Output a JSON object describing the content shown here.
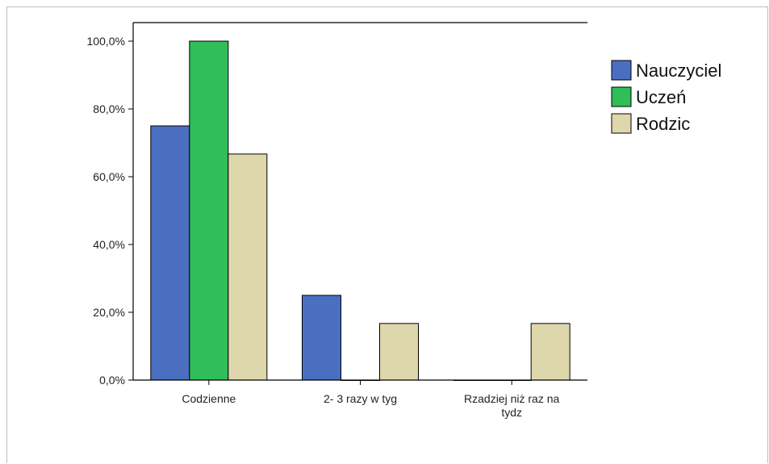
{
  "chart_data": {
    "type": "bar",
    "categories": [
      [
        "Codzienne"
      ],
      [
        "2- 3 razy w tyg"
      ],
      [
        "Rzadziej niż raz na",
        "tydz"
      ]
    ],
    "series": [
      {
        "name": "Nauczyciel",
        "color": "#4a6fc1",
        "values": [
          75.0,
          25.0,
          0.0
        ]
      },
      {
        "name": "Uczeń",
        "color": "#2fbe5a",
        "values": [
          100.0,
          0.0,
          0.0
        ]
      },
      {
        "name": "Rodzic",
        "color": "#ded7ab",
        "values": [
          66.7,
          16.7,
          16.7
        ]
      }
    ],
    "yticks": [
      "0,0%",
      "20,0%",
      "40,0%",
      "60,0%",
      "80,0%",
      "100,0%"
    ],
    "ylim": [
      0,
      100
    ],
    "legend_position": "right",
    "grid": false
  }
}
